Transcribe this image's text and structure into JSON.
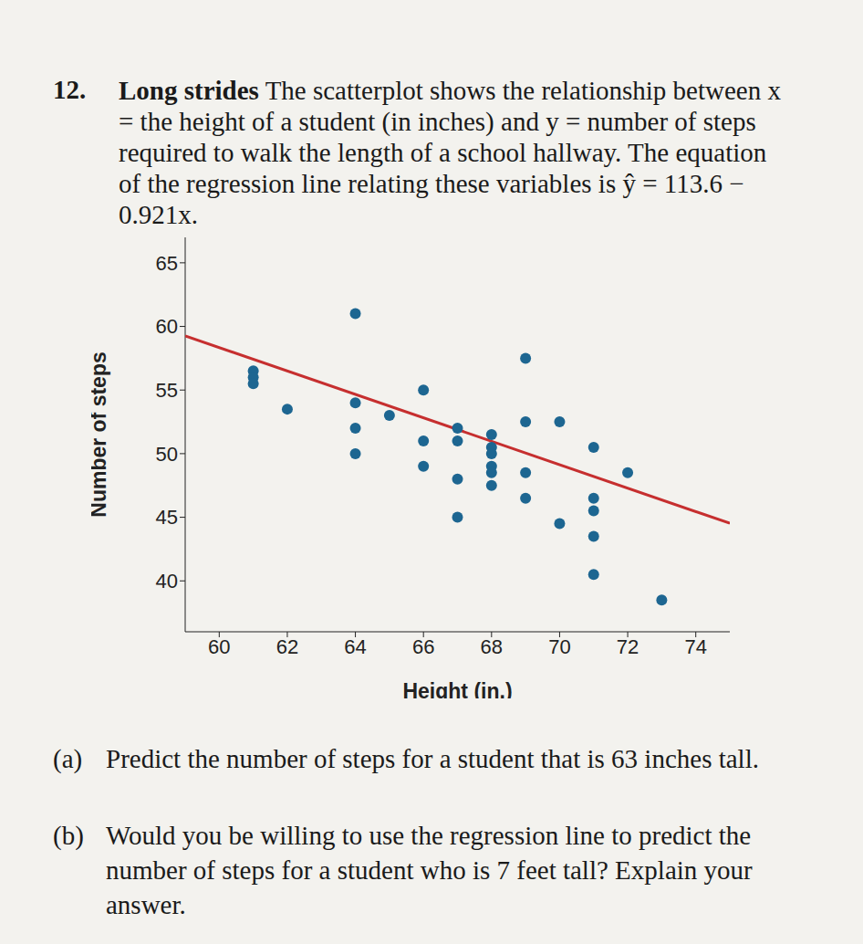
{
  "problem": {
    "number": "12.",
    "title": "Long strides",
    "text": "The scatterplot shows the relationship between x = the height of a student (in inches) and y = number of steps required to walk the length of a school hallway. The equation of the regression line relating these variables is ŷ = 113.6 − 0.921x.",
    "parts": [
      {
        "label": "(a)",
        "text": "Predict the number of steps for a student that is 63 inches tall."
      },
      {
        "label": "(b)",
        "text": "Would you be willing to use the regression line to predict the number of steps for a student who is 7 feet tall? Explain your answer."
      }
    ]
  },
  "chart_data": {
    "type": "scatter",
    "x_label": "Height (in.)",
    "y_label": "Number of steps",
    "x": [
      61,
      61,
      61,
      62,
      64,
      64,
      64,
      64,
      65,
      66,
      66,
      66,
      67,
      67,
      67,
      67,
      68,
      68,
      68,
      68,
      68,
      68,
      69,
      69,
      69,
      69,
      70,
      70,
      71,
      71,
      71,
      71,
      71,
      72,
      73
    ],
    "y": [
      56.5,
      56,
      55.5,
      53.5,
      61,
      54,
      52,
      50,
      53,
      55,
      51,
      49,
      52,
      51,
      48,
      45,
      51.5,
      50.5,
      50,
      49,
      48.5,
      47.5,
      57.5,
      52.5,
      48.5,
      46.5,
      52.5,
      44.5,
      50.5,
      46.5,
      45.5,
      43.5,
      40.5,
      48.5,
      38.5
    ],
    "color": "#1d6691",
    "regression": {
      "intercept": 113.6,
      "slope": -0.921,
      "color": "#c62f2f"
    },
    "xlim": [
      59,
      75
    ],
    "ylim": [
      36,
      67
    ],
    "xticks": [
      60,
      62,
      64,
      66,
      68,
      70,
      72,
      74
    ],
    "yticks": [
      40,
      45,
      50,
      55,
      60,
      65
    ],
    "grid": false
  }
}
